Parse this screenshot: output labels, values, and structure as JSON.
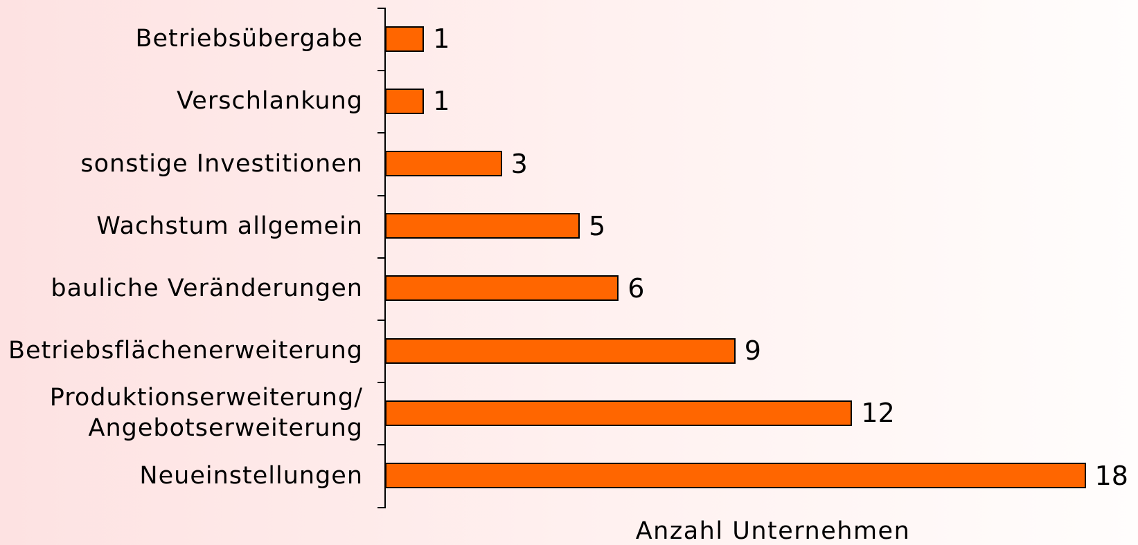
{
  "chart_data": {
    "type": "barh",
    "categories": [
      "Betriebsübergabe",
      "Verschlankung",
      "sonstige Investitionen",
      "Wachstum allgemein",
      "bauliche Veränderungen",
      "Betriebsflächenerweiterung",
      "Produktionserweiterung/\nAngebotserweiterung",
      "Neueinstellungen"
    ],
    "values": [
      1,
      1,
      3,
      5,
      6,
      9,
      12,
      18
    ],
    "color": "#ff6600",
    "x_label": "Anzahl Unternehmen"
  }
}
